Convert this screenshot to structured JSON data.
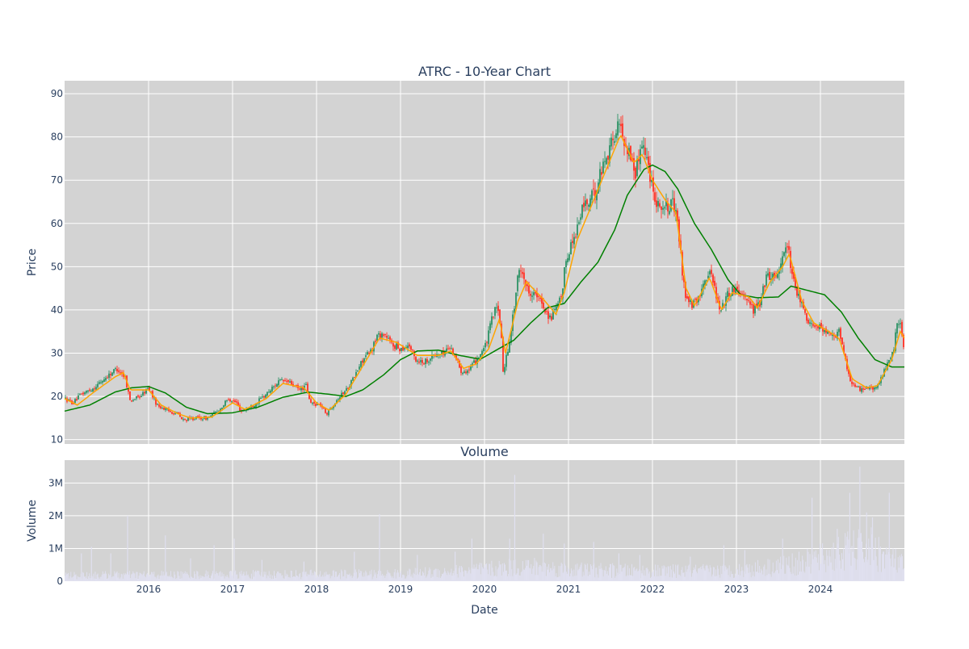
{
  "chart_data": [
    {
      "type": "candlestick",
      "title": "ATRC - 10-Year Chart",
      "ylabel": "Price",
      "ylim": [
        9,
        93
      ],
      "yticks": [
        10,
        20,
        30,
        40,
        50,
        60,
        70,
        80,
        90
      ],
      "xlim": [
        2015.0,
        2025.0
      ],
      "xticks": [
        2016,
        2017,
        2018,
        2019,
        2020,
        2021,
        2022,
        2023,
        2024
      ],
      "xtick_labels": [
        "2016",
        "2017",
        "2018",
        "2019",
        "2020",
        "2021",
        "2022",
        "2023",
        "2024"
      ],
      "grid": true,
      "background": "#d3d3d3",
      "colors": {
        "up": "#3d9970",
        "down": "#ff4136",
        "ma_short": "#ffa500",
        "ma_long": "#008000"
      },
      "price_keypoints": [
        [
          2015.0,
          19.5
        ],
        [
          2015.1,
          18.5
        ],
        [
          2015.2,
          20.5
        ],
        [
          2015.35,
          22.0
        ],
        [
          2015.5,
          24.5
        ],
        [
          2015.62,
          26.5
        ],
        [
          2015.72,
          24.5
        ],
        [
          2015.78,
          19.0
        ],
        [
          2015.9,
          20.0
        ],
        [
          2016.0,
          22.0
        ],
        [
          2016.1,
          18.0
        ],
        [
          2016.25,
          16.5
        ],
        [
          2016.35,
          16.0
        ],
        [
          2016.4,
          14.5
        ],
        [
          2016.55,
          15.0
        ],
        [
          2016.7,
          15.0
        ],
        [
          2016.85,
          17.0
        ],
        [
          2016.95,
          19.5
        ],
        [
          2017.05,
          18.5
        ],
        [
          2017.1,
          16.5
        ],
        [
          2017.25,
          18.0
        ],
        [
          2017.4,
          20.5
        ],
        [
          2017.55,
          23.5
        ],
        [
          2017.65,
          23.5
        ],
        [
          2017.8,
          21.5
        ],
        [
          2017.88,
          22.5
        ],
        [
          2017.92,
          18.5
        ],
        [
          2018.05,
          18.0
        ],
        [
          2018.12,
          16.0
        ],
        [
          2018.25,
          19.5
        ],
        [
          2018.35,
          21.5
        ],
        [
          2018.45,
          24.5
        ],
        [
          2018.55,
          28.5
        ],
        [
          2018.65,
          30.5
        ],
        [
          2018.72,
          34.0
        ],
        [
          2018.8,
          34.5
        ],
        [
          2018.9,
          32.0
        ],
        [
          2019.0,
          31.0
        ],
        [
          2019.1,
          32.0
        ],
        [
          2019.18,
          28.5
        ],
        [
          2019.28,
          28.0
        ],
        [
          2019.4,
          29.5
        ],
        [
          2019.5,
          30.0
        ],
        [
          2019.58,
          31.5
        ],
        [
          2019.65,
          29.5
        ],
        [
          2019.72,
          26.0
        ],
        [
          2019.82,
          26.0
        ],
        [
          2019.92,
          29.0
        ],
        [
          2020.02,
          32.0
        ],
        [
          2020.1,
          39.0
        ],
        [
          2020.15,
          40.5
        ],
        [
          2020.2,
          35.0
        ],
        [
          2020.22,
          25.5
        ],
        [
          2020.28,
          31.0
        ],
        [
          2020.35,
          40.0
        ],
        [
          2020.4,
          48.0
        ],
        [
          2020.45,
          49.5
        ],
        [
          2020.5,
          45.0
        ],
        [
          2020.6,
          43.5
        ],
        [
          2020.7,
          41.0
        ],
        [
          2020.78,
          38.0
        ],
        [
          2020.85,
          40.0
        ],
        [
          2020.92,
          43.0
        ],
        [
          2020.97,
          52.0
        ],
        [
          2021.05,
          56.0
        ],
        [
          2021.12,
          60.0
        ],
        [
          2021.18,
          64.5
        ],
        [
          2021.25,
          65.0
        ],
        [
          2021.32,
          67.5
        ],
        [
          2021.4,
          73.0
        ],
        [
          2021.48,
          77.0
        ],
        [
          2021.55,
          80.5
        ],
        [
          2021.6,
          83.0
        ],
        [
          2021.66,
          79.5
        ],
        [
          2021.75,
          75.0
        ],
        [
          2021.8,
          71.5
        ],
        [
          2021.84,
          75.5
        ],
        [
          2021.87,
          80.0
        ],
        [
          2021.92,
          76.0
        ],
        [
          2021.98,
          70.5
        ],
        [
          2022.05,
          65.0
        ],
        [
          2022.15,
          63.5
        ],
        [
          2022.25,
          64.5
        ],
        [
          2022.3,
          60.0
        ],
        [
          2022.35,
          50.0
        ],
        [
          2022.4,
          42.5
        ],
        [
          2022.48,
          41.0
        ],
        [
          2022.55,
          42.5
        ],
        [
          2022.62,
          47.5
        ],
        [
          2022.7,
          48.5
        ],
        [
          2022.75,
          44.5
        ],
        [
          2022.8,
          40.0
        ],
        [
          2022.87,
          42.5
        ],
        [
          2022.93,
          44.5
        ],
        [
          2023.0,
          45.0
        ],
        [
          2023.1,
          43.5
        ],
        [
          2023.2,
          40.0
        ],
        [
          2023.28,
          41.5
        ],
        [
          2023.35,
          47.5
        ],
        [
          2023.45,
          48.0
        ],
        [
          2023.52,
          49.5
        ],
        [
          2023.57,
          54.5
        ],
        [
          2023.62,
          54.5
        ],
        [
          2023.65,
          48.0
        ],
        [
          2023.72,
          44.0
        ],
        [
          2023.8,
          40.0
        ],
        [
          2023.88,
          36.5
        ],
        [
          2023.95,
          37.0
        ],
        [
          2024.05,
          35.0
        ],
        [
          2024.15,
          33.5
        ],
        [
          2024.22,
          35.0
        ],
        [
          2024.28,
          30.0
        ],
        [
          2024.35,
          24.0
        ],
        [
          2024.42,
          22.0
        ],
        [
          2024.5,
          21.5
        ],
        [
          2024.58,
          22.5
        ],
        [
          2024.65,
          21.5
        ],
        [
          2024.72,
          24.0
        ],
        [
          2024.78,
          27.0
        ],
        [
          2024.84,
          28.5
        ],
        [
          2024.87,
          30.5
        ],
        [
          2024.9,
          36.0
        ],
        [
          2024.95,
          36.5
        ],
        [
          2024.98,
          33.5
        ],
        [
          2025.0,
          30.5
        ]
      ],
      "ma_short_keypoints": [
        [
          2015.0,
          19.5
        ],
        [
          2015.15,
          18.0
        ],
        [
          2015.35,
          21.0
        ],
        [
          2015.6,
          24.5
        ],
        [
          2015.7,
          25.5
        ],
        [
          2015.78,
          21.5
        ],
        [
          2016.0,
          21.5
        ],
        [
          2016.15,
          18.0
        ],
        [
          2016.35,
          16.0
        ],
        [
          2016.5,
          15.0
        ],
        [
          2016.75,
          15.2
        ],
        [
          2017.0,
          18.5
        ],
        [
          2017.15,
          17.0
        ],
        [
          2017.4,
          19.5
        ],
        [
          2017.6,
          23.0
        ],
        [
          2017.85,
          22.0
        ],
        [
          2018.0,
          18.5
        ],
        [
          2018.15,
          16.8
        ],
        [
          2018.35,
          20.5
        ],
        [
          2018.55,
          27.0
        ],
        [
          2018.75,
          33.5
        ],
        [
          2018.95,
          32.5
        ],
        [
          2019.2,
          29.5
        ],
        [
          2019.45,
          29.5
        ],
        [
          2019.6,
          30.5
        ],
        [
          2019.75,
          26.5
        ],
        [
          2019.9,
          27.5
        ],
        [
          2020.05,
          31.0
        ],
        [
          2020.18,
          38.0
        ],
        [
          2020.25,
          30.0
        ],
        [
          2020.4,
          42.0
        ],
        [
          2020.5,
          46.5
        ],
        [
          2020.7,
          42.5
        ],
        [
          2020.85,
          39.0
        ],
        [
          2020.95,
          44.0
        ],
        [
          2021.1,
          56.0
        ],
        [
          2021.25,
          63.0
        ],
        [
          2021.45,
          72.5
        ],
        [
          2021.62,
          80.5
        ],
        [
          2021.78,
          74.0
        ],
        [
          2021.88,
          76.0
        ],
        [
          2022.0,
          70.0
        ],
        [
          2022.15,
          65.5
        ],
        [
          2022.28,
          62.5
        ],
        [
          2022.4,
          45.0
        ],
        [
          2022.5,
          41.0
        ],
        [
          2022.68,
          47.5
        ],
        [
          2022.82,
          40.0
        ],
        [
          2022.95,
          44.0
        ],
        [
          2023.15,
          43.0
        ],
        [
          2023.25,
          40.5
        ],
        [
          2023.4,
          46.5
        ],
        [
          2023.55,
          50.0
        ],
        [
          2023.63,
          53.0
        ],
        [
          2023.78,
          42.0
        ],
        [
          2023.92,
          37.0
        ],
        [
          2024.1,
          35.0
        ],
        [
          2024.22,
          33.5
        ],
        [
          2024.38,
          24.0
        ],
        [
          2024.55,
          22.0
        ],
        [
          2024.68,
          22.5
        ],
        [
          2024.85,
          28.5
        ],
        [
          2024.95,
          35.0
        ],
        [
          2025.0,
          33.5
        ]
      ],
      "ma_long_keypoints": [
        [
          2015.0,
          16.6
        ],
        [
          2015.3,
          18.0
        ],
        [
          2015.6,
          21.0
        ],
        [
          2015.8,
          22.0
        ],
        [
          2016.0,
          22.3
        ],
        [
          2016.2,
          20.8
        ],
        [
          2016.45,
          17.5
        ],
        [
          2016.7,
          16.0
        ],
        [
          2017.0,
          16.2
        ],
        [
          2017.3,
          17.5
        ],
        [
          2017.6,
          19.8
        ],
        [
          2017.9,
          21.0
        ],
        [
          2018.15,
          20.5
        ],
        [
          2018.35,
          20.0
        ],
        [
          2018.55,
          21.5
        ],
        [
          2018.8,
          25.0
        ],
        [
          2019.0,
          28.5
        ],
        [
          2019.2,
          30.5
        ],
        [
          2019.45,
          30.7
        ],
        [
          2019.7,
          29.5
        ],
        [
          2019.95,
          28.6
        ],
        [
          2020.15,
          30.8
        ],
        [
          2020.35,
          33.0
        ],
        [
          2020.55,
          37.0
        ],
        [
          2020.75,
          40.5
        ],
        [
          2020.95,
          41.5
        ],
        [
          2021.15,
          46.5
        ],
        [
          2021.35,
          51.0
        ],
        [
          2021.55,
          58.5
        ],
        [
          2021.7,
          66.5
        ],
        [
          2021.9,
          72.5
        ],
        [
          2022.0,
          73.5
        ],
        [
          2022.15,
          72.0
        ],
        [
          2022.3,
          68.0
        ],
        [
          2022.5,
          60.0
        ],
        [
          2022.7,
          54.0
        ],
        [
          2022.9,
          47.0
        ],
        [
          2023.05,
          43.5
        ],
        [
          2023.25,
          42.8
        ],
        [
          2023.5,
          43.0
        ],
        [
          2023.65,
          45.5
        ],
        [
          2023.85,
          44.5
        ],
        [
          2024.05,
          43.5
        ],
        [
          2024.25,
          39.5
        ],
        [
          2024.45,
          33.5
        ],
        [
          2024.65,
          28.5
        ],
        [
          2024.85,
          26.8
        ],
        [
          2025.0,
          26.8
        ]
      ]
    },
    {
      "type": "bar",
      "title": "Volume",
      "xlabel": "Date",
      "ylabel": "Volume",
      "ylim": [
        0,
        3700000
      ],
      "yticks": [
        0,
        1000000,
        2000000,
        3000000
      ],
      "ytick_labels": [
        "0",
        "1M",
        "2M",
        "3M"
      ],
      "xlim": [
        2015.0,
        2025.0
      ],
      "xticks": [
        2016,
        2017,
        2018,
        2019,
        2020,
        2021,
        2022,
        2023,
        2024
      ],
      "xtick_labels": [
        "2016",
        "2017",
        "2018",
        "2019",
        "2020",
        "2021",
        "2022",
        "2023",
        "2024"
      ],
      "grid": true,
      "background": "#d3d3d3",
      "bar_color": "#e0e0f0",
      "baseline_keypoints": [
        [
          2015.0,
          180000
        ],
        [
          2017.0,
          200000
        ],
        [
          2019.0,
          220000
        ],
        [
          2020.0,
          350000
        ],
        [
          2020.5,
          450000
        ],
        [
          2021.0,
          350000
        ],
        [
          2022.0,
          300000
        ],
        [
          2023.0,
          320000
        ],
        [
          2023.8,
          550000
        ],
        [
          2024.3,
          900000
        ],
        [
          2024.6,
          1000000
        ],
        [
          2025.0,
          450000
        ]
      ],
      "spikes": [
        [
          2015.2,
          850000
        ],
        [
          2015.32,
          1050000
        ],
        [
          2015.55,
          850000
        ],
        [
          2015.75,
          2000000
        ],
        [
          2016.2,
          1400000
        ],
        [
          2016.5,
          700000
        ],
        [
          2016.78,
          1100000
        ],
        [
          2017.02,
          1300000
        ],
        [
          2017.35,
          650000
        ],
        [
          2017.85,
          600000
        ],
        [
          2018.45,
          900000
        ],
        [
          2018.75,
          2050000
        ],
        [
          2019.2,
          800000
        ],
        [
          2019.65,
          900000
        ],
        [
          2019.85,
          1300000
        ],
        [
          2020.3,
          1300000
        ],
        [
          2020.36,
          3250000
        ],
        [
          2020.7,
          1450000
        ],
        [
          2020.95,
          1150000
        ],
        [
          2021.3,
          1200000
        ],
        [
          2021.6,
          850000
        ],
        [
          2021.85,
          800000
        ],
        [
          2022.45,
          750000
        ],
        [
          2022.85,
          1100000
        ],
        [
          2023.1,
          950000
        ],
        [
          2023.55,
          1300000
        ],
        [
          2023.9,
          2550000
        ],
        [
          2024.2,
          1600000
        ],
        [
          2024.35,
          2700000
        ],
        [
          2024.47,
          3500000
        ],
        [
          2024.55,
          2100000
        ],
        [
          2024.62,
          1950000
        ],
        [
          2024.82,
          2700000
        ]
      ]
    }
  ]
}
